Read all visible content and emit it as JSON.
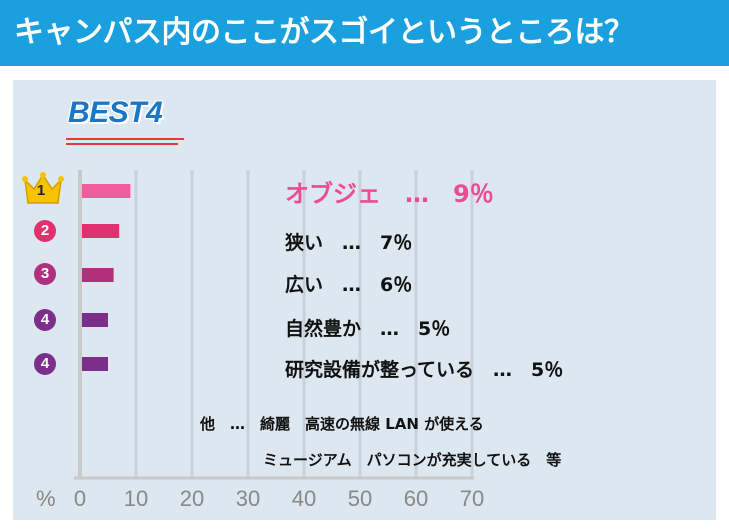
{
  "header": {
    "title": "キャンパス内のここがスゴイというところは？"
  },
  "badge": {
    "text": "BEST4"
  },
  "chart_data": {
    "type": "bar",
    "orientation": "horizontal",
    "title": "キャンパス内のここがスゴイというところは？",
    "unit_label": "%",
    "xlim": [
      0,
      70
    ],
    "ticks": [
      "0",
      "10",
      "20",
      "30",
      "40",
      "50",
      "60",
      "70"
    ],
    "grid": true,
    "categories": [
      "オブジェ",
      "狭い",
      "広い",
      "自然豊か",
      "研究設備が整っている"
    ],
    "values": [
      9,
      7,
      6,
      5,
      5
    ],
    "ranks": [
      "1",
      "2",
      "3",
      "4",
      "4"
    ],
    "display_labels": [
      "オブジェ　…　9％",
      "狭い　…　7％",
      "広い　…　6％",
      "自然豊か　…　5％",
      "研究設備が整っている　…　5％"
    ],
    "colors": [
      "#f25c9c",
      "#e0306e",
      "#b0307e",
      "#7b2f8a",
      "#7b2f8a"
    ],
    "annotations": [
      "他　…　綺麗　高速の無線 LAN が使える",
      "ミュージアム　パソコンが充実している　等"
    ]
  }
}
